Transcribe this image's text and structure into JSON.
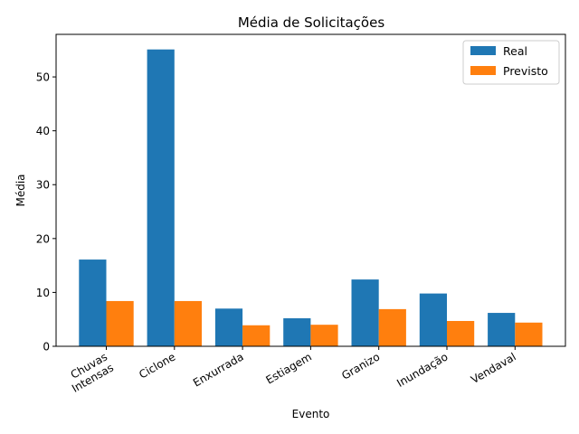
{
  "chart_data": {
    "type": "bar",
    "title": "Média de Solicitações",
    "xlabel": "Evento",
    "ylabel": "Média",
    "categories": [
      [
        "Chuvas",
        "Intensas"
      ],
      [
        "Ciclone"
      ],
      [
        "Enxurrada"
      ],
      [
        "Estiagem"
      ],
      [
        "Granizo"
      ],
      [
        "Inundação"
      ],
      [
        "Vendaval"
      ]
    ],
    "series": [
      {
        "name": "Real",
        "color": "#1f77b4",
        "values": [
          16.1,
          55.1,
          7.0,
          5.2,
          12.4,
          9.8,
          6.2
        ]
      },
      {
        "name": "Previsto",
        "color": "#ff7f0e",
        "values": [
          8.4,
          8.4,
          3.9,
          4.0,
          6.9,
          4.7,
          4.4
        ]
      }
    ],
    "ylim": [
      0,
      57.9
    ],
    "yticks": [
      0,
      10,
      20,
      30,
      40,
      50
    ],
    "legend": "top-right",
    "grid": false
  }
}
